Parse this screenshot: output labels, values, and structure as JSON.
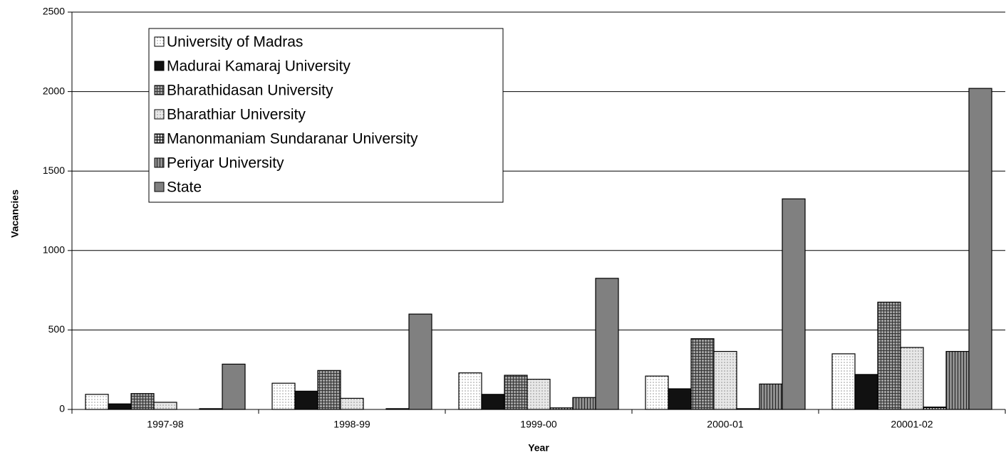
{
  "chart_data": {
    "type": "bar",
    "xlabel": "Year",
    "ylabel": "Vacancies",
    "categories": [
      "1997-98",
      "1998-99",
      "1999-00",
      "2000-01",
      "20001-02"
    ],
    "series": [
      {
        "name": "University of Madras",
        "color": "#ffffff",
        "values": [
          95,
          165,
          230,
          210,
          350
        ]
      },
      {
        "name": "Madurai Kamaraj University",
        "color": "#111111",
        "values": [
          35,
          115,
          95,
          130,
          220
        ]
      },
      {
        "name": "Bharathidasan University",
        "color": "#a0a0a0",
        "values": [
          100,
          245,
          215,
          445,
          675
        ]
      },
      {
        "name": "Bharathiar University",
        "color": "#e8e8e8",
        "values": [
          45,
          70,
          190,
          365,
          390
        ]
      },
      {
        "name": "Manonmaniam Sundaranar University",
        "color": "#c8c8c8",
        "values": [
          0,
          0,
          10,
          5,
          15
        ]
      },
      {
        "name": "Periyar University",
        "color": "#909090",
        "values": [
          5,
          5,
          75,
          160,
          365
        ]
      },
      {
        "name": "State",
        "color": "#808080",
        "values": [
          285,
          600,
          825,
          1325,
          2020
        ]
      }
    ],
    "ylim": [
      0,
      2500
    ],
    "yticks": [
      0,
      500,
      1000,
      1500,
      2000,
      2500
    ],
    "grid": true,
    "legend": "upper left"
  }
}
